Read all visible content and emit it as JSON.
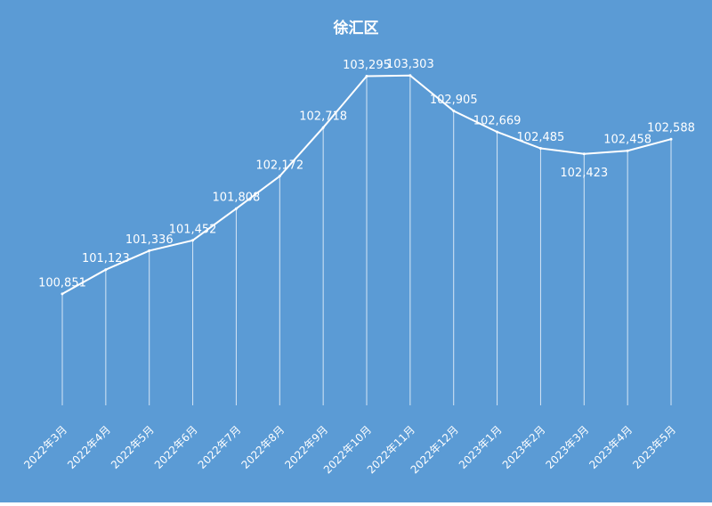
{
  "chart_data": {
    "type": "line",
    "title": "徐汇区",
    "categories": [
      "2022年3月",
      "2022年4月",
      "2022年5月",
      "2022年6月",
      "2022年7月",
      "2022年8月",
      "2022年9月",
      "2022年10月",
      "2022年11月",
      "2022年12月",
      "2023年1月",
      "2023年2月",
      "2023年3月",
      "2023年4月",
      "2023年5月"
    ],
    "values": [
      100851,
      101123,
      101336,
      101452,
      101808,
      102172,
      102718,
      103295,
      103303,
      102905,
      102669,
      102485,
      102423,
      102458,
      102588
    ],
    "value_labels": [
      "100,851",
      "101,123",
      "101,336",
      "101,452",
      "101,808",
      "102,172",
      "102,718",
      "103,295",
      "103,303",
      "102,905",
      "102,669",
      "102,485",
      "102,423",
      "102,458",
      "102,588"
    ],
    "color": "#ffffff",
    "background": "#5b9bd5",
    "ylim": [
      99600,
      103600
    ]
  }
}
